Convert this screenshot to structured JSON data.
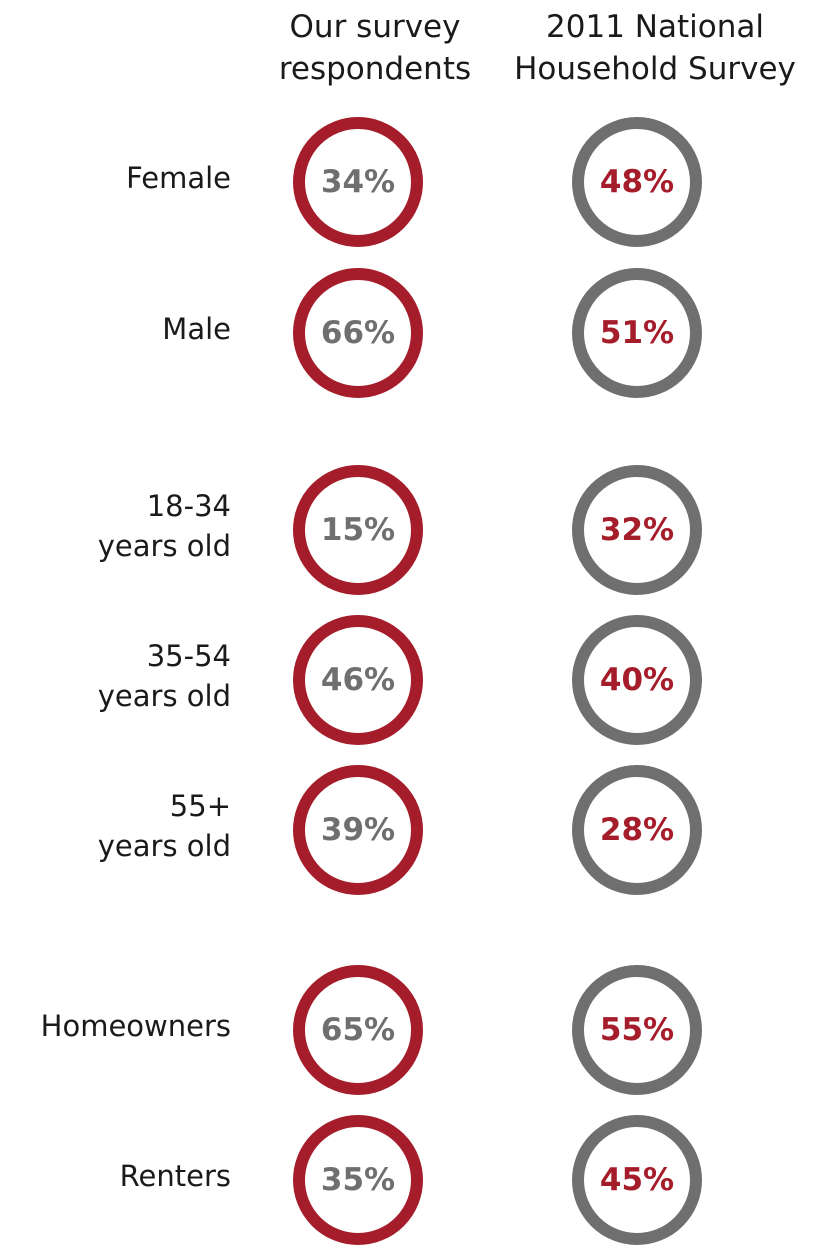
{
  "chart_data": {
    "type": "table",
    "columns": [
      "Our survey\nrespondents",
      "2011 National\nHousehold Survey"
    ],
    "rows": [
      {
        "label": "Female",
        "survey": "34%",
        "national": "48%"
      },
      {
        "label": "Male",
        "survey": "66%",
        "national": "51%"
      },
      {
        "label": "18-34\nyears old",
        "survey": "15%",
        "national": "32%"
      },
      {
        "label": "35-54\nyears old",
        "survey": "46%",
        "national": "40%"
      },
      {
        "label": "55+\nyears old",
        "survey": "39%",
        "national": "28%"
      },
      {
        "label": "Homeowners",
        "survey": "65%",
        "national": "55%"
      },
      {
        "label": "Renters",
        "survey": "35%",
        "national": "45%"
      }
    ],
    "colors": {
      "survey_ring": "#a51d2a",
      "survey_text": "#6f6f6f",
      "national_ring": "#6f6f6f",
      "national_text": "#a51d2a"
    }
  }
}
